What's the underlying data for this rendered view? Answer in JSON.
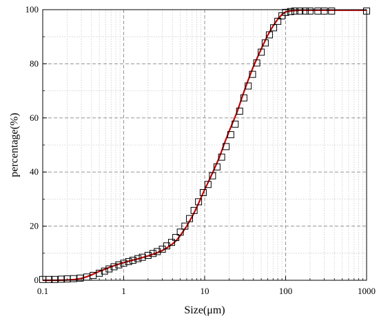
{
  "chart_data": {
    "type": "scatter",
    "xlabel": "Size(μm)",
    "ylabel": "percentage(%)",
    "xscale": "log",
    "xlim": [
      0.1,
      1000
    ],
    "ylim": [
      0,
      100
    ],
    "x_ticks": [
      {
        "value": 0.1,
        "label": "0.1"
      },
      {
        "value": 1,
        "label": "1"
      },
      {
        "value": 10,
        "label": "10"
      },
      {
        "value": 100,
        "label": "100"
      },
      {
        "value": 1000,
        "label": "1000"
      }
    ],
    "y_ticks": [
      {
        "value": 0,
        "label": "0"
      },
      {
        "value": 20,
        "label": "20"
      },
      {
        "value": 40,
        "label": "40"
      },
      {
        "value": 60,
        "label": "60"
      },
      {
        "value": 80,
        "label": "80"
      },
      {
        "value": 100,
        "label": "100"
      }
    ],
    "grid": true,
    "series": [
      {
        "marker": "square",
        "color": "#000000",
        "x": [
          0.1,
          0.12,
          0.14,
          0.17,
          0.2,
          0.24,
          0.29,
          0.35,
          0.42,
          0.5,
          0.58,
          0.66,
          0.76,
          0.87,
          1.0,
          1.15,
          1.3,
          1.5,
          1.7,
          2.0,
          2.3,
          2.6,
          3.0,
          3.4,
          3.9,
          4.4,
          5.0,
          5.7,
          6.5,
          7.4,
          8.4,
          9.6,
          11.0,
          12.5,
          14.2,
          16.2,
          18.4,
          21.0,
          23.8,
          27.0,
          30.5,
          34.5,
          39.0,
          44.0,
          50.0,
          56.0,
          63.0,
          71.0,
          80.0,
          90.0,
          100,
          115,
          130,
          150,
          175,
          200,
          250,
          300,
          370,
          1000
        ],
        "y": [
          0.3,
          0.3,
          0.3,
          0.4,
          0.5,
          0.6,
          0.8,
          1.2,
          1.8,
          2.6,
          3.4,
          4.2,
          5.0,
          5.7,
          6.3,
          6.9,
          7.4,
          8.0,
          8.5,
          9.2,
          9.9,
          10.6,
          11.5,
          12.7,
          14.0,
          15.8,
          17.8,
          20.0,
          22.8,
          25.8,
          29.0,
          32.4,
          35.4,
          38.6,
          41.9,
          45.5,
          49.4,
          53.8,
          57.7,
          62.5,
          67.4,
          71.8,
          76.1,
          80.3,
          84.3,
          87.7,
          90.7,
          93.3,
          95.7,
          97.7,
          99.0,
          99.3,
          99.5,
          99.5,
          99.5,
          99.5,
          99.5,
          99.5,
          99.5,
          99.5
        ]
      },
      {
        "line": true,
        "color": "#c00000",
        "x": [
          0.1,
          0.15,
          0.2,
          0.25,
          0.3,
          0.35,
          0.4,
          0.45,
          0.5,
          0.6,
          0.7,
          0.8,
          0.9,
          1.0,
          1.2,
          1.5,
          2.0,
          2.5,
          3.0,
          3.5,
          4.0,
          4.5,
          5.0,
          6.0,
          7.0,
          8.0,
          10.0,
          12.0,
          15.0,
          18.0,
          20.0,
          25.0,
          30.0,
          35.0,
          40.0,
          50.0,
          60.0,
          70.0,
          80.0,
          90.0,
          100,
          120,
          150,
          200,
          300,
          500,
          1000
        ],
        "y": [
          0.0,
          0.0,
          0.1,
          0.3,
          0.7,
          1.3,
          2.0,
          2.7,
          3.3,
          4.2,
          5.0,
          5.6,
          6.1,
          6.5,
          7.2,
          7.9,
          9.0,
          10.0,
          11.0,
          12.2,
          13.4,
          14.8,
          16.5,
          20.0,
          23.5,
          27.0,
          33.5,
          38.5,
          45.0,
          51.5,
          55.0,
          62.0,
          69.0,
          74.5,
          79.0,
          85.5,
          90.5,
          94.0,
          96.5,
          98.2,
          99.2,
          99.6,
          99.8,
          99.8,
          99.8,
          99.8,
          99.8
        ]
      }
    ]
  }
}
